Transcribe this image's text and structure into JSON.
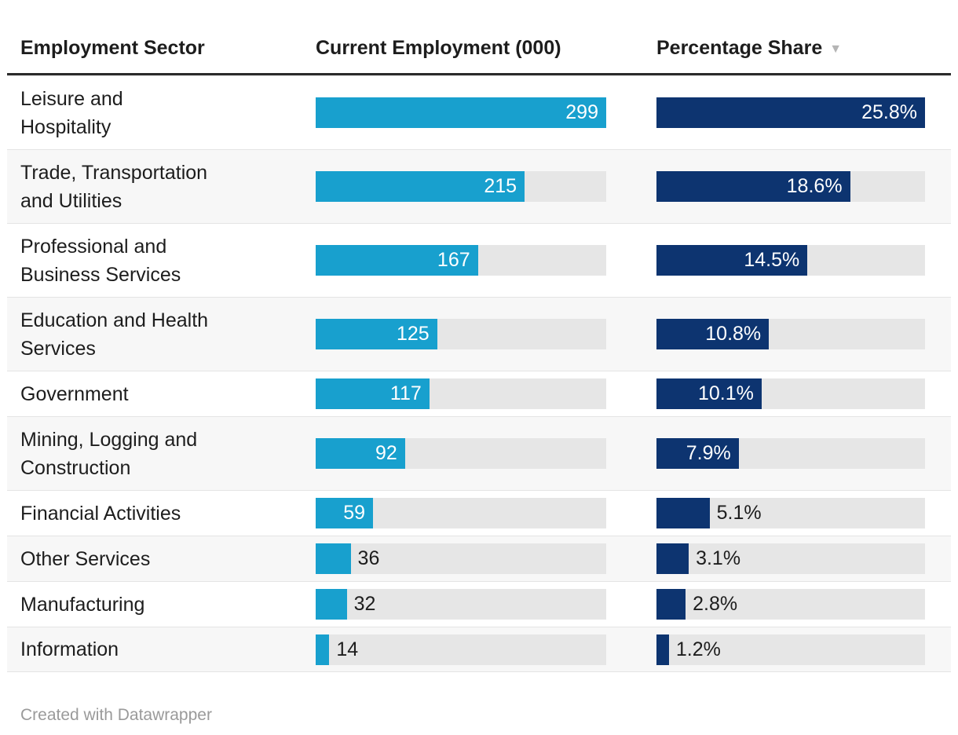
{
  "header": {
    "sector_label": "Employment Sector",
    "employment_label": "Current Employment (000)",
    "share_label": "Percentage Share",
    "sort_arrow": "▼"
  },
  "footer": {
    "credit": "Created with Datawrapper"
  },
  "colors": {
    "employment_bar": "#18a0ce",
    "share_bar": "#0d3470",
    "bar_track": "#e6e6e6",
    "row_stripe": "#f7f7f7",
    "header_rule": "#2b2b2b",
    "text": "#1d1d1d",
    "inside_label": "#ffffff",
    "footer_text": "#9a9a9a",
    "sort_arrow": "#b5b5b5"
  },
  "chart_data": {
    "type": "table",
    "columns": [
      "Employment Sector",
      "Current Employment (000)",
      "Percentage Share"
    ],
    "sort": {
      "column": "Percentage Share",
      "direction": "desc"
    },
    "max_employment": 299,
    "max_share": 25.8,
    "embedded_charts": "horizontal bars in columns 2 and 3, scaled to column maximum",
    "rows": [
      {
        "label_lines": [
          "Leisure and",
          "Hospitality"
        ],
        "sector": "Leisure and Hospitality",
        "employment": 299,
        "employment_label": "299",
        "employment_label_pos": "inside",
        "share": 25.8,
        "share_label": "25.8%",
        "share_label_pos": "inside"
      },
      {
        "label_lines": [
          "Trade, Transportation",
          "and Utilities"
        ],
        "sector": "Trade, Transportation and Utilities",
        "employment": 215,
        "employment_label": "215",
        "employment_label_pos": "inside",
        "share": 18.6,
        "share_label": "18.6%",
        "share_label_pos": "inside"
      },
      {
        "label_lines": [
          "Professional and",
          "Business Services"
        ],
        "sector": "Professional and Business Services",
        "employment": 167,
        "employment_label": "167",
        "employment_label_pos": "inside",
        "share": 14.5,
        "share_label": "14.5%",
        "share_label_pos": "inside"
      },
      {
        "label_lines": [
          "Education and Health",
          "Services"
        ],
        "sector": "Education and Health Services",
        "employment": 125,
        "employment_label": "125",
        "employment_label_pos": "inside",
        "share": 10.8,
        "share_label": "10.8%",
        "share_label_pos": "inside"
      },
      {
        "label_lines": [
          "Government"
        ],
        "sector": "Government",
        "employment": 117,
        "employment_label": "117",
        "employment_label_pos": "inside",
        "share": 10.1,
        "share_label": "10.1%",
        "share_label_pos": "inside"
      },
      {
        "label_lines": [
          "Mining, Logging and",
          "Construction"
        ],
        "sector": "Mining, Logging and Construction",
        "employment": 92,
        "employment_label": "92",
        "employment_label_pos": "inside",
        "share": 7.9,
        "share_label": "7.9%",
        "share_label_pos": "inside"
      },
      {
        "label_lines": [
          "Financial Activities"
        ],
        "sector": "Financial Activities",
        "employment": 59,
        "employment_label": "59",
        "employment_label_pos": "inside",
        "share": 5.1,
        "share_label": "5.1%",
        "share_label_pos": "outside"
      },
      {
        "label_lines": [
          "Other Services"
        ],
        "sector": "Other Services",
        "employment": 36,
        "employment_label": "36",
        "employment_label_pos": "outside",
        "share": 3.1,
        "share_label": "3.1%",
        "share_label_pos": "outside"
      },
      {
        "label_lines": [
          "Manufacturing"
        ],
        "sector": "Manufacturing",
        "employment": 32,
        "employment_label": "32",
        "employment_label_pos": "outside",
        "share": 2.8,
        "share_label": "2.8%",
        "share_label_pos": "outside"
      },
      {
        "label_lines": [
          "Information"
        ],
        "sector": "Information",
        "employment": 14,
        "employment_label": "14",
        "employment_label_pos": "outside",
        "share": 1.2,
        "share_label": "1.2%",
        "share_label_pos": "outside"
      }
    ]
  }
}
